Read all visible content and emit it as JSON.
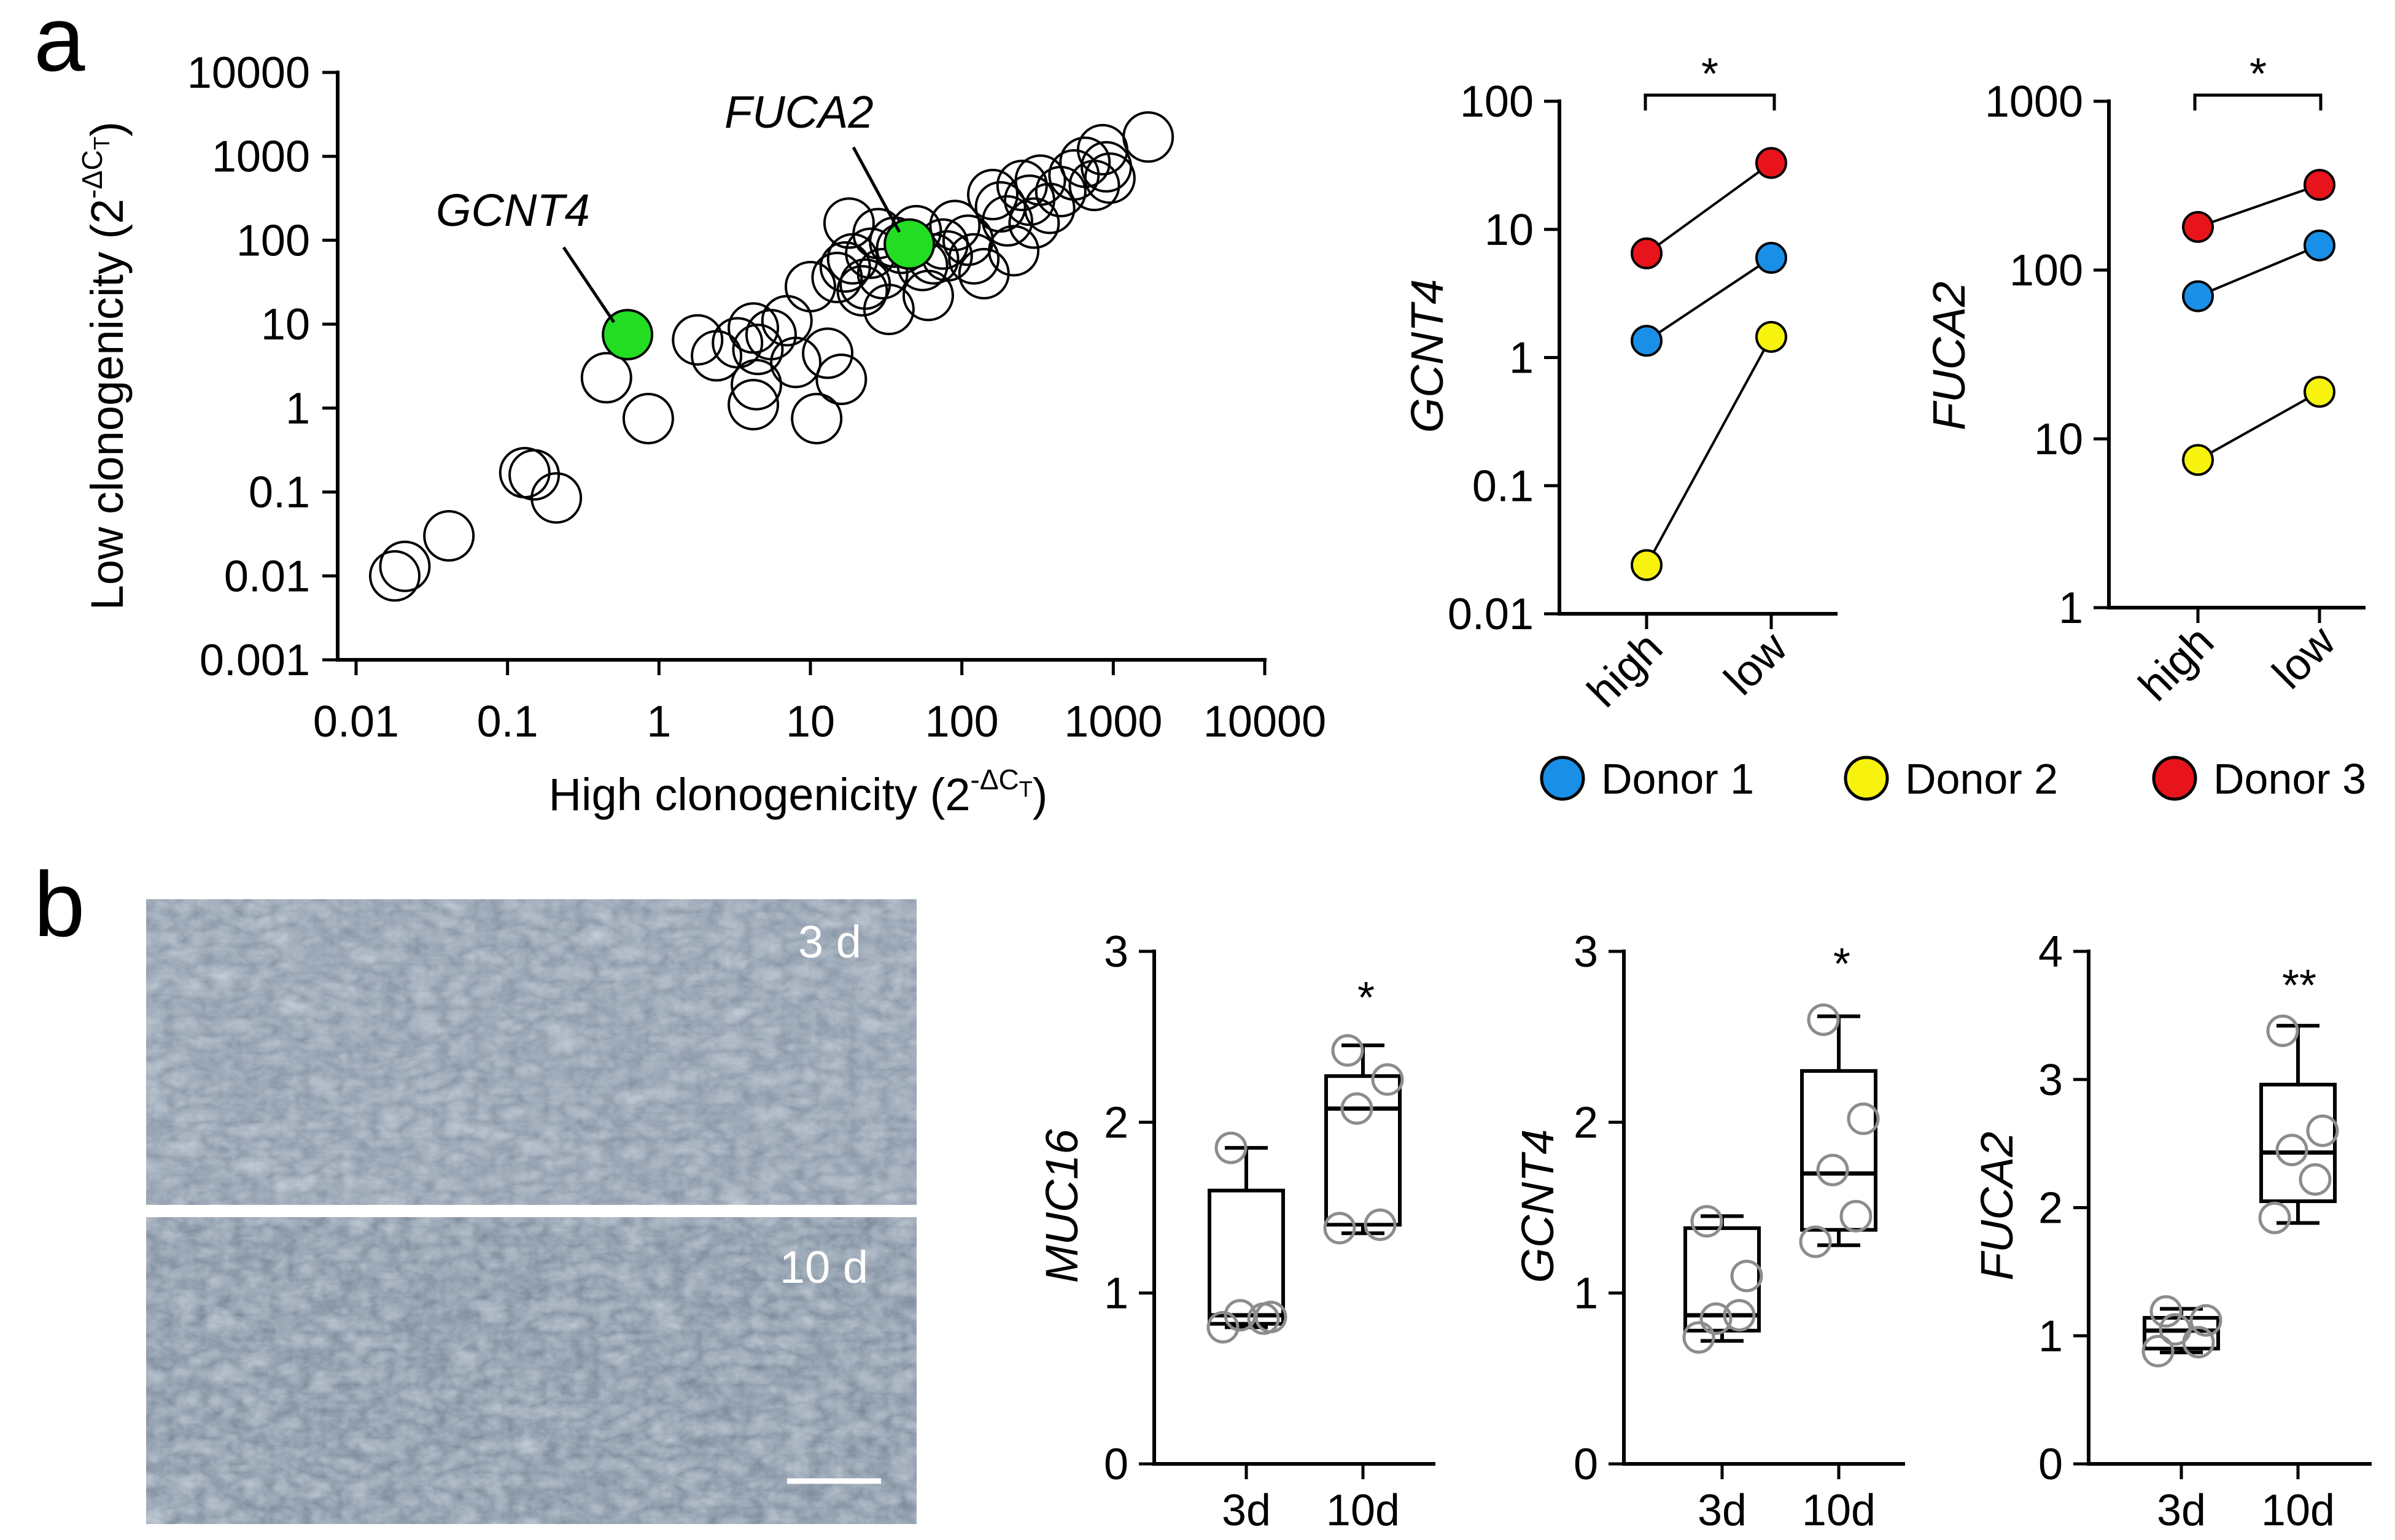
{
  "panels": {
    "a": "a",
    "b": "b"
  },
  "colors": {
    "donor1": "#1a8fe8",
    "donor2": "#f7f20e",
    "donor3": "#e8141c",
    "highlight": "#22dd22",
    "box_marker": "#8c8c8c",
    "micrograph_bg": "#7f8e9e"
  },
  "chart_data": [
    {
      "id": "scatter",
      "type": "scatter",
      "xscale": "log",
      "yscale": "log",
      "xlim": [
        0.01,
        10000
      ],
      "ylim": [
        0.001,
        10000
      ],
      "xticks": [
        "0.01",
        "0.1",
        "1",
        "10",
        "100",
        "1000",
        "10000"
      ],
      "yticks": [
        "0.001",
        "0.01",
        "0.1",
        "1",
        "10",
        "100",
        "1000",
        "10000"
      ],
      "xlabel": "High clonogenicity (2",
      "ylabel": "Low clonogenicity (2",
      "label_exp": "-ΔC",
      "label_sub": "T",
      "label_close": ")",
      "points": [
        {
          "x": 0.018,
          "y": 0.01
        },
        {
          "x": 0.021,
          "y": 0.013
        },
        {
          "x": 0.041,
          "y": 0.03
        },
        {
          "x": 0.13,
          "y": 0.17
        },
        {
          "x": 0.15,
          "y": 0.16
        },
        {
          "x": 0.21,
          "y": 0.085
        },
        {
          "x": 0.45,
          "y": 2.3
        },
        {
          "x": 0.85,
          "y": 0.75
        },
        {
          "x": 1.8,
          "y": 6.5
        },
        {
          "x": 2.4,
          "y": 4.2
        },
        {
          "x": 3.3,
          "y": 6
        },
        {
          "x": 4.2,
          "y": 9
        },
        {
          "x": 4.5,
          "y": 5
        },
        {
          "x": 4.2,
          "y": 1.1
        },
        {
          "x": 4.4,
          "y": 1.9
        },
        {
          "x": 5.5,
          "y": 7.5
        },
        {
          "x": 7,
          "y": 11
        },
        {
          "x": 11,
          "y": 0.75
        },
        {
          "x": 13,
          "y": 4.5
        },
        {
          "x": 16,
          "y": 2.2
        },
        {
          "x": 18,
          "y": 160
        },
        {
          "x": 17,
          "y": 48
        },
        {
          "x": 19,
          "y": 60
        },
        {
          "x": 15,
          "y": 36
        },
        {
          "x": 22,
          "y": 25
        },
        {
          "x": 23,
          "y": 30
        },
        {
          "x": 25,
          "y": 70
        },
        {
          "x": 28,
          "y": 120
        },
        {
          "x": 30,
          "y": 40
        },
        {
          "x": 33,
          "y": 15
        },
        {
          "x": 36,
          "y": 95
        },
        {
          "x": 40,
          "y": 80
        },
        {
          "x": 50,
          "y": 130
        },
        {
          "x": 55,
          "y": 50
        },
        {
          "x": 60,
          "y": 22
        },
        {
          "x": 65,
          "y": 60
        },
        {
          "x": 75,
          "y": 90
        },
        {
          "x": 80,
          "y": 65
        },
        {
          "x": 90,
          "y": 150
        },
        {
          "x": 110,
          "y": 100
        },
        {
          "x": 120,
          "y": 60
        },
        {
          "x": 140,
          "y": 40
        },
        {
          "x": 160,
          "y": 350
        },
        {
          "x": 180,
          "y": 250
        },
        {
          "x": 200,
          "y": 170
        },
        {
          "x": 220,
          "y": 75
        },
        {
          "x": 250,
          "y": 450
        },
        {
          "x": 280,
          "y": 300
        },
        {
          "x": 300,
          "y": 160
        },
        {
          "x": 330,
          "y": 520
        },
        {
          "x": 380,
          "y": 240
        },
        {
          "x": 450,
          "y": 380
        },
        {
          "x": 550,
          "y": 600
        },
        {
          "x": 650,
          "y": 850
        },
        {
          "x": 750,
          "y": 450
        },
        {
          "x": 850,
          "y": 1200
        },
        {
          "x": 900,
          "y": 750
        },
        {
          "x": 950,
          "y": 550
        },
        {
          "x": 1700,
          "y": 1700
        },
        {
          "x": 10,
          "y": 28
        },
        {
          "x": 8,
          "y": 3.5
        }
      ],
      "highlighted": [
        {
          "gene": "GCNT4",
          "x": 0.62,
          "y": 7.5
        },
        {
          "gene": "FUCA2",
          "x": 45,
          "y": 90
        }
      ]
    },
    {
      "id": "paired-gcnt4",
      "type": "line",
      "yscale": "log",
      "ylim": [
        0.01,
        100
      ],
      "yticks": [
        "0.01",
        "0.1",
        "1",
        "10",
        "100"
      ],
      "categories": [
        "high",
        "low"
      ],
      "ylabel": "GCNT4",
      "significance": "*",
      "series": [
        {
          "name": "Donor 1",
          "values": [
            1.35,
            6
          ]
        },
        {
          "name": "Donor 2",
          "values": [
            0.024,
            1.45
          ]
        },
        {
          "name": "Donor 3",
          "values": [
            6.5,
            33
          ]
        }
      ]
    },
    {
      "id": "paired-fuca2",
      "type": "line",
      "yscale": "log",
      "ylim": [
        1,
        1000
      ],
      "yticks": [
        "1",
        "10",
        "100",
        "1000"
      ],
      "categories": [
        "high",
        "low"
      ],
      "ylabel": "FUCA2",
      "significance": "*",
      "series": [
        {
          "name": "Donor 1",
          "values": [
            70,
            140
          ]
        },
        {
          "name": "Donor 2",
          "values": [
            7.5,
            19
          ]
        },
        {
          "name": "Donor 3",
          "values": [
            180,
            320
          ]
        }
      ]
    },
    {
      "id": "box-muc16",
      "type": "box",
      "ylim": [
        0,
        3
      ],
      "yticks": [
        "0",
        "1",
        "2",
        "3"
      ],
      "categories": [
        "3d",
        "10d"
      ],
      "ylabel": "MUC16",
      "significance": "*",
      "groups": [
        {
          "name": "3d",
          "min": 0.8,
          "q1": 0.82,
          "median": 0.87,
          "q3": 1.6,
          "max": 1.85,
          "points": [
            0.8,
            0.85,
            0.87,
            0.86,
            1.85
          ]
        },
        {
          "name": "10d",
          "min": 1.35,
          "q1": 1.4,
          "median": 2.08,
          "q3": 2.27,
          "max": 2.45,
          "points": [
            1.38,
            1.4,
            2.08,
            2.25,
            2.42
          ]
        }
      ]
    },
    {
      "id": "box-gcnt4",
      "type": "box",
      "ylim": [
        0,
        3
      ],
      "yticks": [
        "0",
        "1",
        "2",
        "3"
      ],
      "categories": [
        "3d",
        "10d"
      ],
      "ylabel": "GCNT4",
      "significance": "*",
      "groups": [
        {
          "name": "3d",
          "min": 0.72,
          "q1": 0.78,
          "median": 0.87,
          "q3": 1.38,
          "max": 1.45,
          "points": [
            0.74,
            0.87,
            0.85,
            1.1,
            1.42
          ]
        },
        {
          "name": "10d",
          "min": 1.28,
          "q1": 1.37,
          "median": 1.7,
          "q3": 2.3,
          "max": 2.62,
          "points": [
            1.3,
            1.45,
            1.72,
            2.02,
            2.6
          ]
        }
      ]
    },
    {
      "id": "box-fuca2",
      "type": "box",
      "ylim": [
        0,
        4
      ],
      "yticks": [
        "0",
        "1",
        "2",
        "3",
        "4"
      ],
      "categories": [
        "3d",
        "10d"
      ],
      "ylabel": "FUCA2",
      "significance": "**",
      "groups": [
        {
          "name": "3d",
          "min": 0.87,
          "q1": 0.9,
          "median": 1.04,
          "q3": 1.14,
          "max": 1.21,
          "points": [
            0.88,
            0.95,
            1.05,
            1.12,
            1.19
          ]
        },
        {
          "name": "10d",
          "min": 1.88,
          "q1": 2.05,
          "median": 2.43,
          "q3": 2.96,
          "max": 3.42,
          "points": [
            1.92,
            2.22,
            2.45,
            2.6,
            3.38
          ]
        }
      ]
    }
  ],
  "legend": [
    {
      "label": "Donor 1",
      "color": "#1a8fe8"
    },
    {
      "label": "Donor 2",
      "color": "#f7f20e"
    },
    {
      "label": "Donor 3",
      "color": "#e8141c"
    }
  ],
  "micrographs": {
    "top_label": "3 d",
    "bottom_label": "10 d"
  }
}
